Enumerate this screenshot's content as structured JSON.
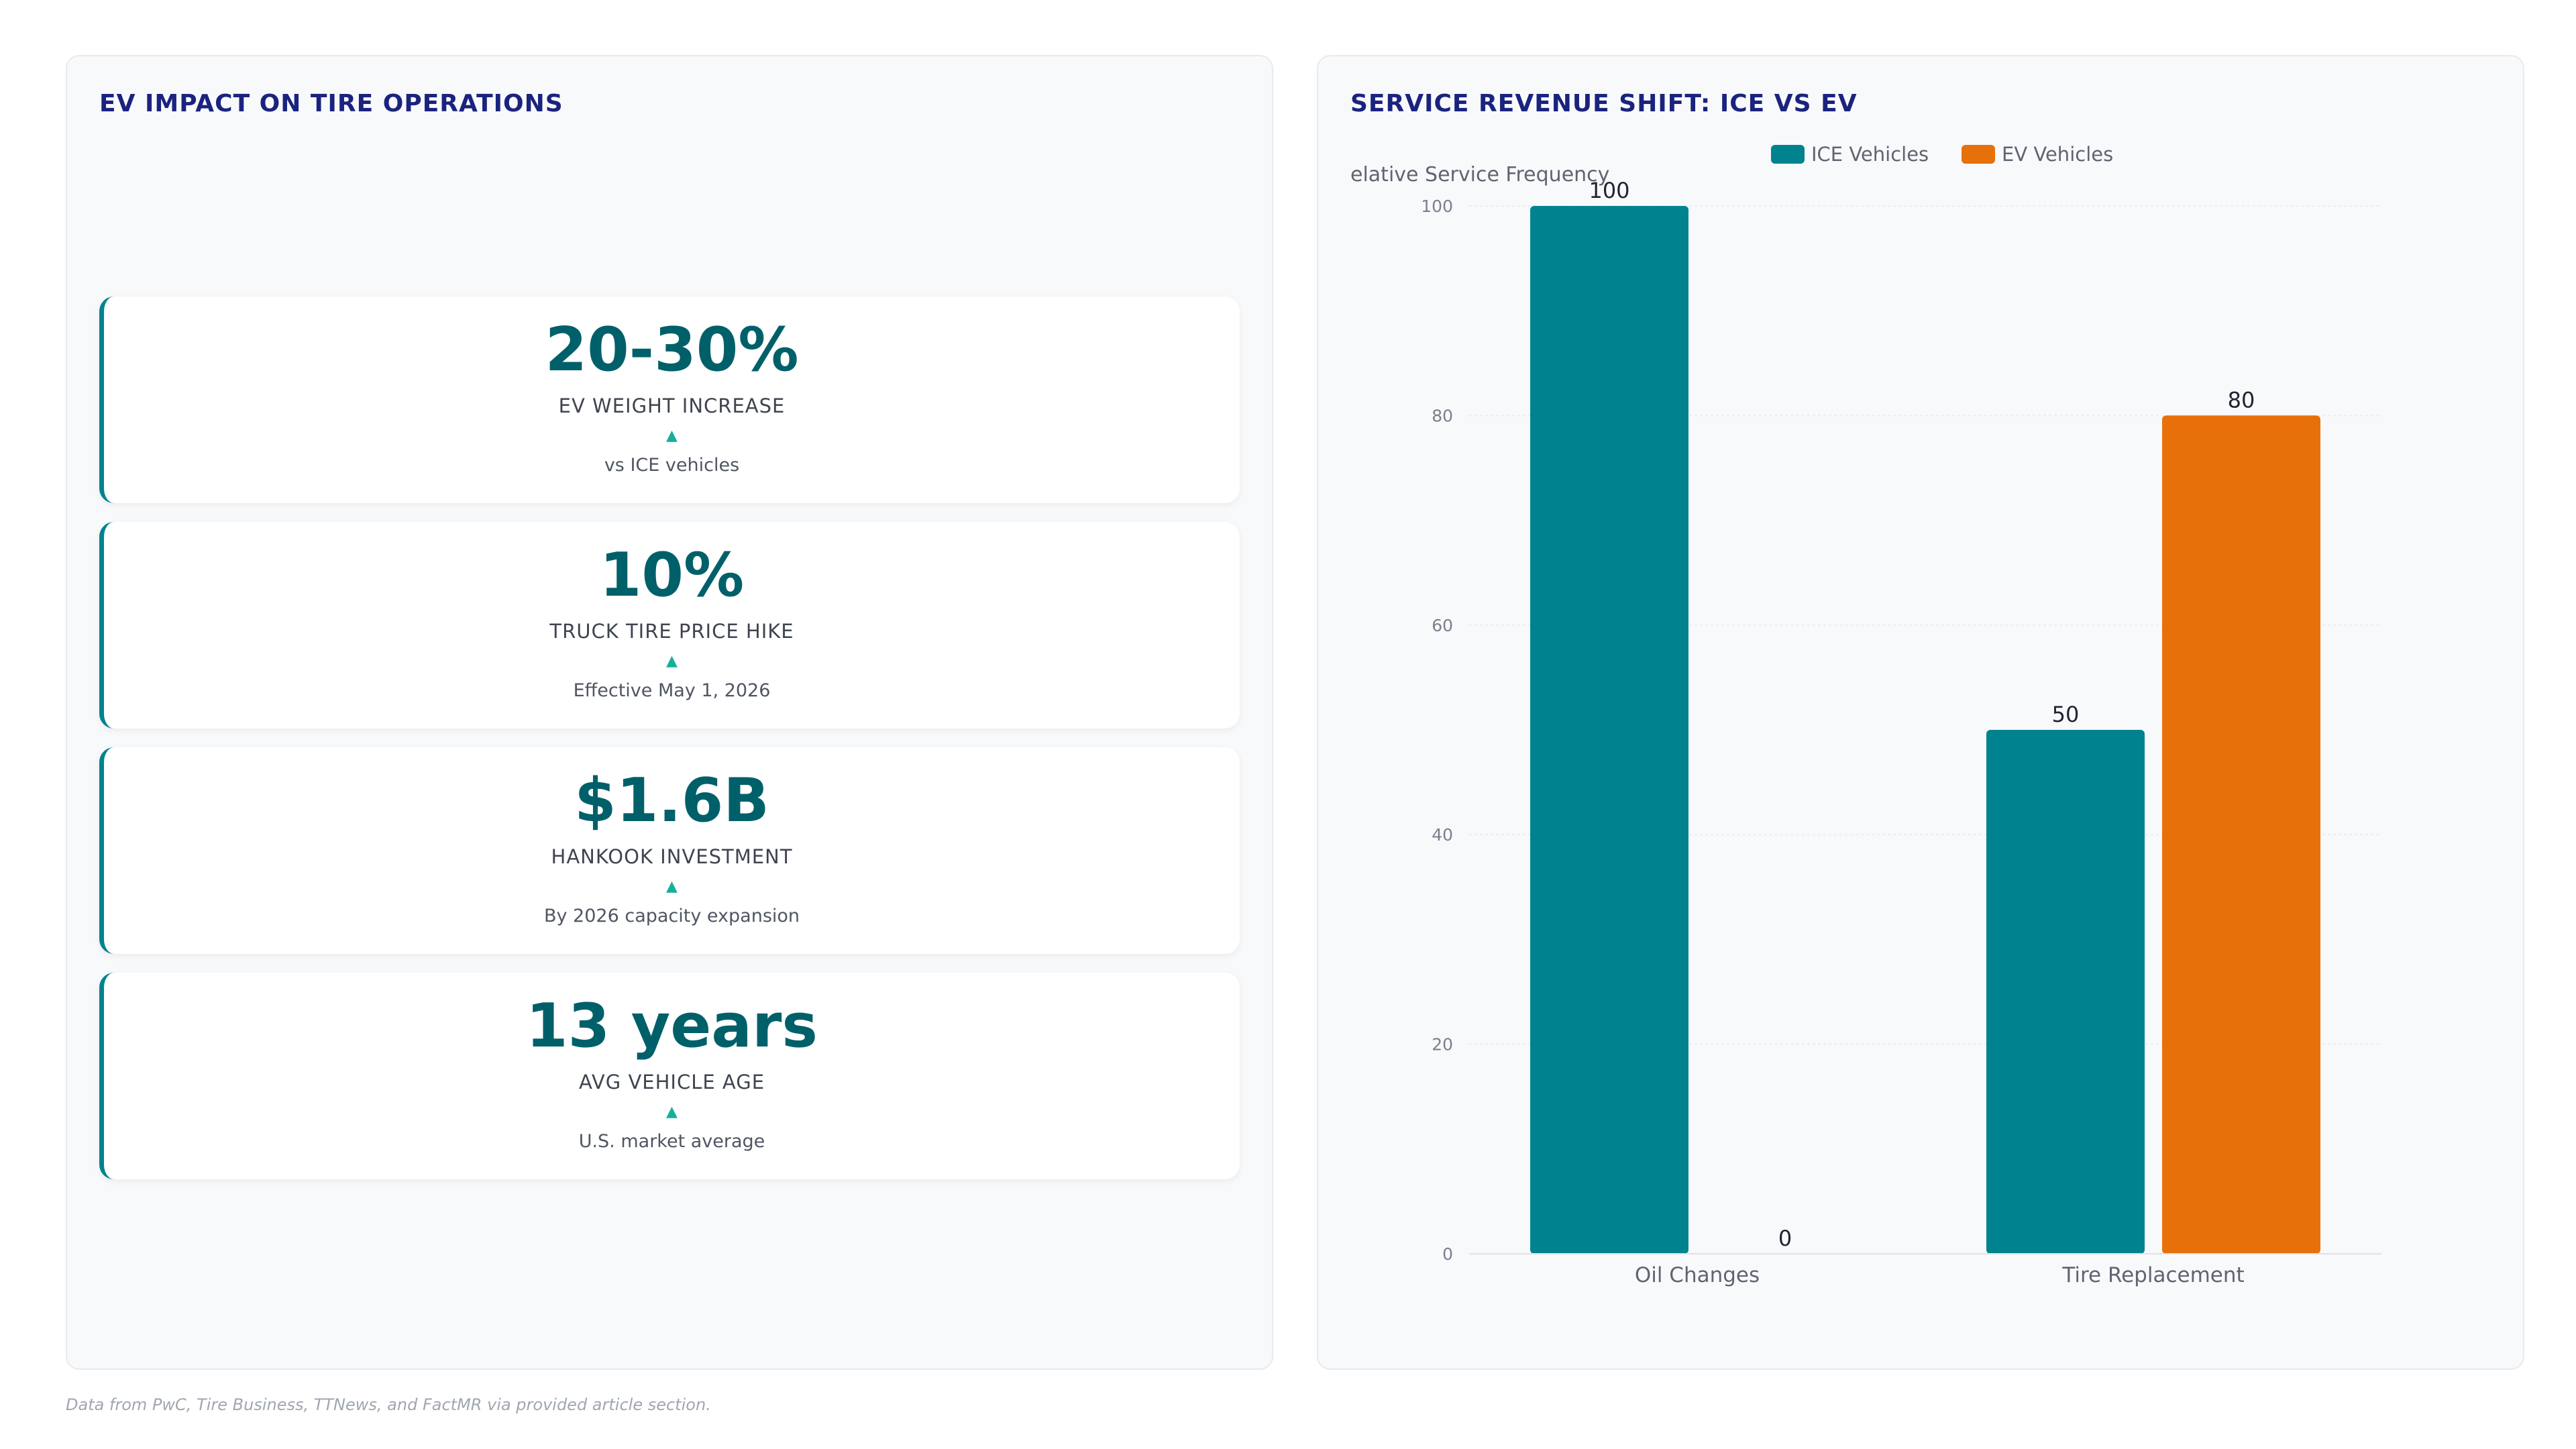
{
  "left_panel": {
    "title": "EV IMPACT ON TIRE OPERATIONS",
    "kpis": [
      {
        "value": "20-30%",
        "label": "EV WEIGHT INCREASE",
        "trend": "▲",
        "note": "vs ICE vehicles"
      },
      {
        "value": "10%",
        "label": "TRUCK TIRE PRICE HIKE",
        "trend": "▲",
        "note": "Effective May 1, 2026"
      },
      {
        "value": "$1.6B",
        "label": "HANKOOK INVESTMENT",
        "trend": "▲",
        "note": "By 2026 capacity expansion"
      },
      {
        "value": "13 years",
        "label": "AVG VEHICLE AGE",
        "trend": "▲",
        "note": "U.S. market average"
      }
    ]
  },
  "right_panel": {
    "title": "SERVICE REVENUE SHIFT: ICE VS EV"
  },
  "chart_data": {
    "type": "bar",
    "title": "",
    "ylabel": "elative Service Frequency",
    "xlabel": "",
    "categories": [
      "Oil Changes",
      "Tire Replacement"
    ],
    "series": [
      {
        "name": "ICE Vehicles",
        "color": "#00838f",
        "values": [
          100,
          50
        ]
      },
      {
        "name": "EV Vehicles",
        "color": "#e8700a",
        "values": [
          0,
          80
        ]
      }
    ],
    "ylim": [
      0,
      100
    ],
    "yticks": [
      0,
      20,
      40,
      60,
      80,
      100
    ],
    "data_labels": true,
    "grid": true,
    "legend_position": "top-center"
  },
  "footer": "Data from PwC, Tire Business, TTNews, and FactMR via provided article section."
}
